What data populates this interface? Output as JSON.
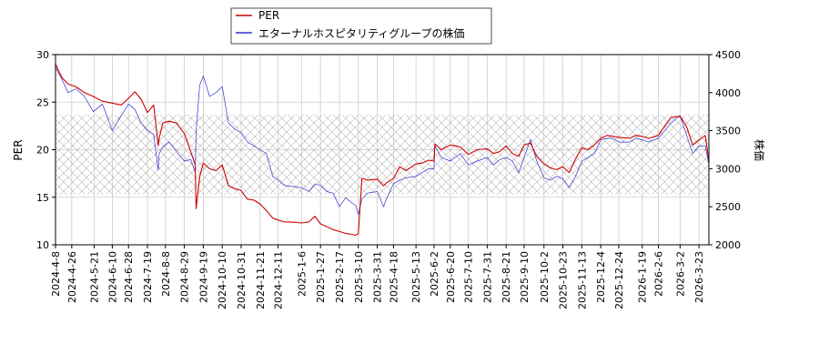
{
  "chart_data": {
    "type": "line",
    "title": "",
    "xlabel": "",
    "ylabel": "PER",
    "y2label": "株価",
    "ylim": [
      10,
      30
    ],
    "y2lim": [
      2000,
      4500
    ],
    "yticks": [
      10,
      15,
      20,
      25,
      30
    ],
    "y2ticks": [
      2000,
      2500,
      3000,
      3500,
      4000,
      4500
    ],
    "x_range": [
      "2024-04-08",
      "2026-04-03"
    ],
    "grid": true,
    "legend_position": "top-center",
    "band": {
      "label": "",
      "ylow": 15.3,
      "yhigh": 23.7
    },
    "colors": {
      "per": "#cc0000",
      "price": "#3333cc",
      "band": "#999999",
      "grid": "#cccccc"
    },
    "x_ticks": [
      "2024-4-8",
      "2024-4-26",
      "2024-5-21",
      "2024-6-10",
      "2024-6-28",
      "2024-7-19",
      "2024-8-8",
      "2024-8-29",
      "2024-9-19",
      "2024-10-10",
      "2024-10-31",
      "2024-11-21",
      "2024-12-11",
      "2025-1-6",
      "2025-1-27",
      "2025-2-17",
      "2025-3-10",
      "2025-3-31",
      "2025-4-18",
      "2025-5-13",
      "2025-6-2",
      "2025-6-20",
      "2025-7-10",
      "2025-7-31",
      "2025-8-21",
      "2025-9-10",
      "2025-10-2",
      "2025-10-23",
      "2025-11-13",
      "2025-12-4",
      "2025-12-24",
      "2026-1-19",
      "2026-2-6",
      "2026-3-2",
      "2026-3-23"
    ],
    "series": [
      {
        "name": "PER",
        "axis": "left",
        "x": [
          "2024-04-08",
          "2024-04-15",
          "2024-04-22",
          "2024-05-01",
          "2024-05-10",
          "2024-05-20",
          "2024-05-30",
          "2024-06-10",
          "2024-06-20",
          "2024-06-28",
          "2024-07-05",
          "2024-07-12",
          "2024-07-19",
          "2024-07-26",
          "2024-07-31",
          "2024-08-01",
          "2024-08-05",
          "2024-08-12",
          "2024-08-20",
          "2024-08-29",
          "2024-09-05",
          "2024-09-10",
          "2024-09-11",
          "2024-09-15",
          "2024-09-19",
          "2024-09-26",
          "2024-10-03",
          "2024-10-10",
          "2024-10-17",
          "2024-10-24",
          "2024-10-31",
          "2024-11-07",
          "2024-11-14",
          "2024-11-21",
          "2024-11-28",
          "2024-12-05",
          "2024-12-11",
          "2024-12-18",
          "2024-12-25",
          "2025-01-06",
          "2025-01-14",
          "2025-01-21",
          "2025-01-27",
          "2025-02-03",
          "2025-02-10",
          "2025-02-17",
          "2025-02-24",
          "2025-03-03",
          "2025-03-07",
          "2025-03-10",
          "2025-03-14",
          "2025-03-20",
          "2025-03-31",
          "2025-04-07",
          "2025-04-10",
          "2025-04-18",
          "2025-04-25",
          "2025-05-02",
          "2025-05-13",
          "2025-05-20",
          "2025-05-27",
          "2025-06-02",
          "2025-06-03",
          "2025-06-10",
          "2025-06-20",
          "2025-07-01",
          "2025-07-10",
          "2025-07-20",
          "2025-07-31",
          "2025-08-07",
          "2025-08-14",
          "2025-08-21",
          "2025-08-28",
          "2025-09-04",
          "2025-09-10",
          "2025-09-17",
          "2025-09-24",
          "2025-10-02",
          "2025-10-09",
          "2025-10-16",
          "2025-10-23",
          "2025-10-30",
          "2025-11-06",
          "2025-11-13",
          "2025-11-20",
          "2025-11-27",
          "2025-12-04",
          "2025-12-11",
          "2025-12-18",
          "2025-12-24",
          "2026-01-05",
          "2026-01-12",
          "2026-01-19",
          "2026-01-26",
          "2026-02-06",
          "2026-02-13",
          "2026-02-20",
          "2026-03-02",
          "2026-03-09",
          "2026-03-16",
          "2026-03-23",
          "2026-03-30",
          "2026-04-03"
        ],
        "values": [
          29.0,
          27.6,
          26.9,
          26.6,
          26.0,
          25.6,
          25.1,
          24.9,
          24.7,
          25.4,
          26.1,
          25.3,
          23.9,
          24.7,
          20.4,
          21.2,
          22.8,
          23.0,
          22.8,
          21.7,
          19.8,
          18.4,
          13.8,
          17.2,
          18.6,
          18.0,
          17.8,
          18.4,
          16.2,
          15.9,
          15.7,
          14.8,
          14.7,
          14.3,
          13.6,
          12.8,
          12.6,
          12.4,
          12.4,
          12.3,
          12.4,
          13.0,
          12.2,
          11.9,
          11.6,
          11.4,
          11.2,
          11.1,
          11.0,
          11.2,
          17.0,
          16.8,
          16.9,
          16.2,
          16.5,
          17.0,
          18.2,
          17.8,
          18.5,
          18.6,
          18.9,
          18.8,
          20.6,
          20.0,
          20.5,
          20.3,
          19.5,
          20.0,
          20.1,
          19.6,
          19.8,
          20.4,
          19.6,
          19.3,
          20.5,
          20.7,
          19.3,
          18.5,
          18.1,
          17.9,
          18.2,
          17.6,
          19.0,
          20.2,
          20.0,
          20.5,
          21.2,
          21.5,
          21.4,
          21.3,
          21.2,
          21.5,
          21.4,
          21.2,
          21.5,
          22.5,
          23.4,
          23.5,
          22.5,
          20.5,
          21.0,
          21.5,
          18.8
        ]
      },
      {
        "name": "エターナルホスピタリティグループの株価",
        "axis": "right",
        "x": [
          "2024-04-08",
          "2024-04-15",
          "2024-04-22",
          "2024-05-01",
          "2024-05-10",
          "2024-05-20",
          "2024-05-30",
          "2024-06-10",
          "2024-06-20",
          "2024-06-28",
          "2024-07-05",
          "2024-07-12",
          "2024-07-19",
          "2024-07-26",
          "2024-07-31",
          "2024-08-01",
          "2024-08-05",
          "2024-08-12",
          "2024-08-20",
          "2024-08-29",
          "2024-09-05",
          "2024-09-10",
          "2024-09-11",
          "2024-09-15",
          "2024-09-19",
          "2024-09-26",
          "2024-10-03",
          "2024-10-10",
          "2024-10-17",
          "2024-10-24",
          "2024-10-31",
          "2024-11-07",
          "2024-11-14",
          "2024-11-21",
          "2024-11-28",
          "2024-12-05",
          "2024-12-11",
          "2024-12-18",
          "2024-12-25",
          "2025-01-06",
          "2025-01-14",
          "2025-01-21",
          "2025-01-27",
          "2025-02-03",
          "2025-02-10",
          "2025-02-17",
          "2025-02-24",
          "2025-03-03",
          "2025-03-07",
          "2025-03-10",
          "2025-03-14",
          "2025-03-20",
          "2025-03-31",
          "2025-04-07",
          "2025-04-10",
          "2025-04-18",
          "2025-04-25",
          "2025-05-02",
          "2025-05-13",
          "2025-05-20",
          "2025-05-27",
          "2025-06-02",
          "2025-06-03",
          "2025-06-10",
          "2025-06-20",
          "2025-07-01",
          "2025-07-10",
          "2025-07-20",
          "2025-07-31",
          "2025-08-07",
          "2025-08-14",
          "2025-08-21",
          "2025-08-28",
          "2025-09-04",
          "2025-09-10",
          "2025-09-17",
          "2025-09-24",
          "2025-10-02",
          "2025-10-09",
          "2025-10-16",
          "2025-10-23",
          "2025-10-30",
          "2025-11-06",
          "2025-11-13",
          "2025-11-20",
          "2025-11-27",
          "2025-12-04",
          "2025-12-11",
          "2025-12-18",
          "2025-12-24",
          "2026-01-05",
          "2026-01-12",
          "2026-01-19",
          "2026-01-26",
          "2026-02-06",
          "2026-02-13",
          "2026-02-20",
          "2026-03-02",
          "2026-03-09",
          "2026-03-16",
          "2026-03-23",
          "2026-03-30",
          "2026-04-03"
        ],
        "values": [
          4330,
          4180,
          4000,
          4050,
          3950,
          3750,
          3850,
          3500,
          3700,
          3850,
          3780,
          3600,
          3500,
          3450,
          2980,
          3200,
          3280,
          3350,
          3230,
          3100,
          3120,
          2950,
          3500,
          4100,
          4220,
          3950,
          4000,
          4080,
          3600,
          3520,
          3470,
          3350,
          3300,
          3250,
          3200,
          2900,
          2850,
          2780,
          2770,
          2750,
          2700,
          2800,
          2780,
          2700,
          2680,
          2500,
          2620,
          2550,
          2520,
          2400,
          2600,
          2680,
          2700,
          2500,
          2600,
          2800,
          2850,
          2880,
          2900,
          2950,
          3000,
          3000,
          3300,
          3150,
          3100,
          3200,
          3050,
          3100,
          3150,
          3050,
          3120,
          3150,
          3100,
          2950,
          3150,
          3380,
          3100,
          2880,
          2850,
          2900,
          2870,
          2750,
          2900,
          3100,
          3150,
          3200,
          3380,
          3400,
          3400,
          3350,
          3350,
          3400,
          3380,
          3350,
          3400,
          3500,
          3600,
          3700,
          3450,
          3200,
          3300,
          3300,
          3050
        ]
      }
    ]
  }
}
